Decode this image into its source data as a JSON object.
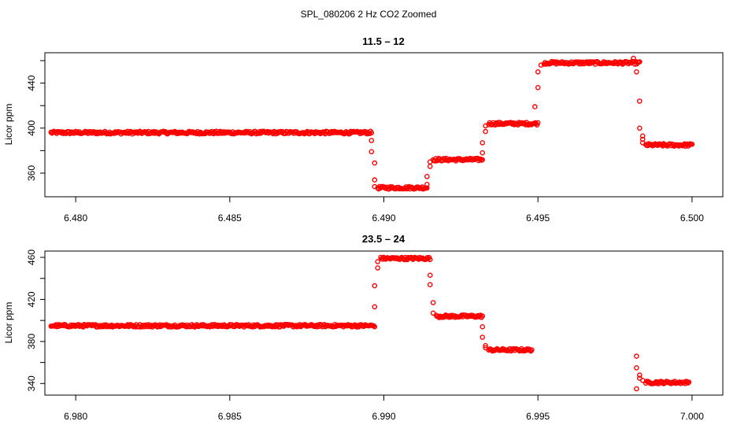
{
  "figure": {
    "title": "SPL_080206  2 Hz CO2 Zoomed"
  },
  "chart_data": [
    {
      "type": "scatter",
      "title": "11.5 – 12",
      "ylabel": "Licor ppm",
      "xlabel": "",
      "xlim": [
        6.479,
        6.501
      ],
      "ylim": [
        339,
        467
      ],
      "x_ticks": [
        6.48,
        6.485,
        6.49,
        6.495,
        6.5
      ],
      "x_tick_labels": [
        "6.480",
        "6.485",
        "6.490",
        "6.495",
        "6.500"
      ],
      "y_ticks": [
        360,
        380,
        400,
        420,
        440,
        460
      ],
      "y_tick_labels": [
        "360",
        "",
        "400",
        "",
        "440",
        ""
      ],
      "marker_color": "#ff0000",
      "grid": false,
      "segments": [
        {
          "x_start": 6.4792,
          "x_end": 6.4896,
          "y": 396
        },
        {
          "x_start": 6.4898,
          "x_end": 6.4914,
          "y": 347
        },
        {
          "x_start": 6.4916,
          "x_end": 6.4932,
          "y": 372
        },
        {
          "x_start": 6.4934,
          "x_end": 6.495,
          "y": 404
        },
        {
          "x_start": 6.4952,
          "x_end": 6.4983,
          "y": 458
        },
        {
          "x_start": 6.4985,
          "x_end": 6.5,
          "y": 385
        }
      ],
      "transitions": [
        {
          "x": [
            6.4896,
            6.4896,
            6.4897,
            6.4897,
            6.4897
          ],
          "y": [
            389,
            379,
            369,
            354,
            348
          ]
        },
        {
          "x": [
            6.4914,
            6.4914,
            6.4915,
            6.4915
          ],
          "y": [
            350,
            357,
            366,
            370
          ]
        },
        {
          "x": [
            6.4932,
            6.4932,
            6.4933,
            6.4933
          ],
          "y": [
            378,
            387,
            397,
            402
          ]
        },
        {
          "x": [
            6.4949,
            6.495,
            6.495,
            6.4951
          ],
          "y": [
            419,
            436,
            450,
            456
          ]
        },
        {
          "x": [
            6.4981,
            6.4982,
            6.4983,
            6.4983,
            6.4984,
            6.4984,
            6.4984
          ],
          "y": [
            462,
            450,
            424,
            400,
            393,
            390,
            387
          ]
        }
      ]
    },
    {
      "type": "scatter",
      "title": "23.5 – 24",
      "ylabel": "Licor ppm",
      "xlabel": "",
      "xlim": [
        6.979,
        7.001
      ],
      "ylim": [
        329,
        466
      ],
      "x_ticks": [
        6.98,
        6.985,
        6.99,
        6.995,
        7.0
      ],
      "x_tick_labels": [
        "6.980",
        "6.985",
        "6.990",
        "6.995",
        "7.000"
      ],
      "y_ticks": [
        340,
        360,
        380,
        400,
        420,
        440,
        460
      ],
      "y_tick_labels": [
        "340",
        "",
        "380",
        "",
        "420",
        "",
        "460"
      ],
      "marker_color": "#ff0000",
      "grid": false,
      "segments": [
        {
          "x_start": 6.9792,
          "x_end": 6.9897,
          "y": 395
        },
        {
          "x_start": 6.9899,
          "x_end": 6.9915,
          "y": 459
        },
        {
          "x_start": 6.9917,
          "x_end": 6.9932,
          "y": 404
        },
        {
          "x_start": 6.9934,
          "x_end": 6.9948,
          "y": 372
        },
        {
          "x_start": 6.9985,
          "x_end": 6.9999,
          "y": 341
        }
      ],
      "transitions": [
        {
          "x": [
            6.9897,
            6.9897,
            6.9898,
            6.9898
          ],
          "y": [
            413,
            433,
            450,
            456
          ]
        },
        {
          "x": [
            6.9915,
            6.9915,
            6.9916,
            6.9916
          ],
          "y": [
            443,
            434,
            417,
            407
          ]
        },
        {
          "x": [
            6.9932,
            6.9932,
            6.9933,
            6.9933
          ],
          "y": [
            394,
            384,
            376,
            374
          ]
        },
        {
          "x": [
            6.9982,
            6.9982,
            6.9983,
            6.9983,
            6.9984,
            6.9982
          ],
          "y": [
            366,
            355,
            348,
            345,
            343,
            335
          ]
        }
      ]
    }
  ]
}
